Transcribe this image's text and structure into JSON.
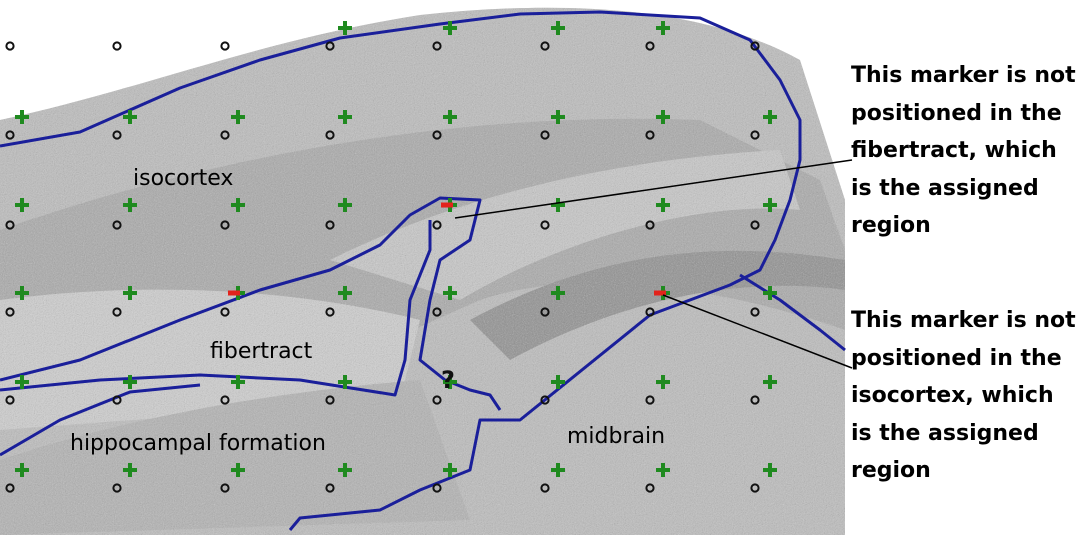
{
  "regions": {
    "isocortex": "isocortex",
    "fibertract": "fibertract",
    "hippocampal": "hippocampal formation",
    "midbrain": "midbrain"
  },
  "annotations": {
    "fibertract_note": [
      "This marker is not",
      "positioned in the",
      "fibertract, which",
      "is the assigned",
      "region"
    ],
    "isocortex_note": [
      "This marker is not",
      "positioned in the",
      "isocortex, which",
      "is the assigned",
      "region"
    ]
  },
  "unknown_mark": "?",
  "colors": {
    "boundary": "#1a1f9a",
    "plus_marker": "#1f8a1f",
    "minus_marker": "#e3231b",
    "circle_marker": "#111111",
    "background": "#ffffff",
    "tissue": "#b9b9b9"
  },
  "marker_legend": {
    "plus_marker": "plus-marker",
    "minus_marker": "minus-marker",
    "circle_marker": "circle-marker"
  }
}
